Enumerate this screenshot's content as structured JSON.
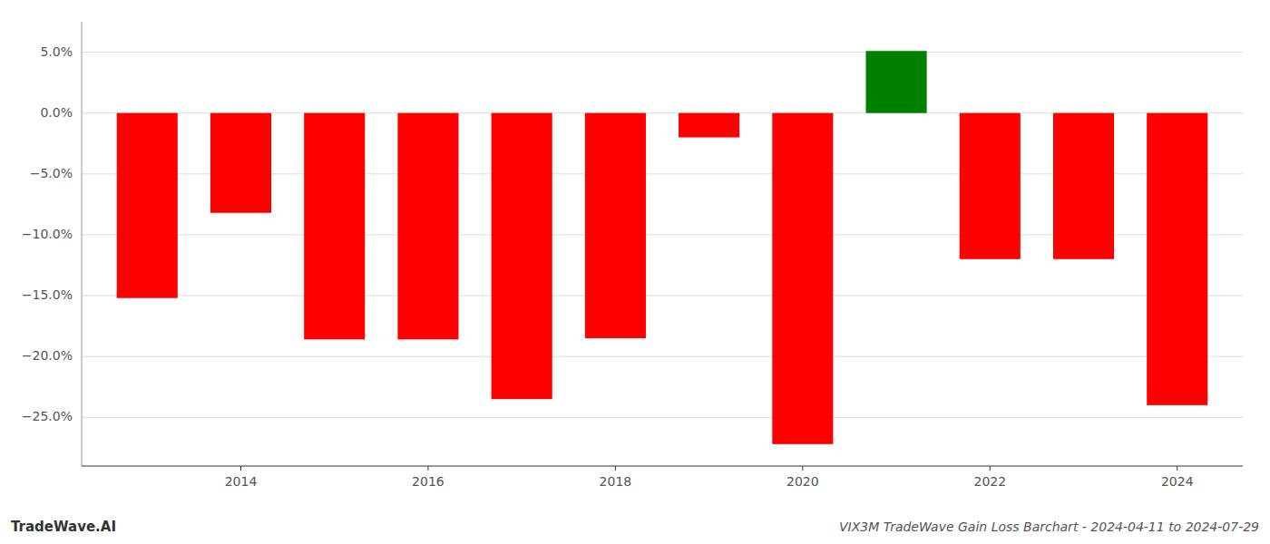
{
  "chart_data": {
    "type": "bar",
    "title": "VIX3M TradeWave Gain Loss Barchart - 2024-04-11 to 2024-07-29",
    "annotations": [
      "TradeWave.AI"
    ],
    "categories": [
      null,
      "2014",
      null,
      "2016",
      null,
      "2018",
      null,
      "2020",
      null,
      "2022",
      null,
      "2024"
    ],
    "values": [
      -0.152,
      -0.082,
      -0.186,
      -0.186,
      -0.235,
      -0.185,
      -0.02,
      -0.272,
      0.051,
      -0.12,
      -0.12,
      -0.24
    ],
    "colors": [
      "#ff0000",
      "#ff0000",
      "#ff0000",
      "#ff0000",
      "#ff0000",
      "#ff0000",
      "#ff0000",
      "#ff0000",
      "#008000",
      "#ff0000",
      "#ff0000",
      "#ff0000"
    ],
    "ylim": [
      -0.29,
      0.075
    ],
    "yticks": [
      {
        "value": -0.25,
        "label": "−25.0%"
      },
      {
        "value": -0.2,
        "label": "−20.0%"
      },
      {
        "value": -0.15,
        "label": "−15.0%"
      },
      {
        "value": -0.1,
        "label": "−10.0%"
      },
      {
        "value": -0.05,
        "label": "−5.0%"
      },
      {
        "value": 0.0,
        "label": "0.0%"
      },
      {
        "value": 0.05,
        "label": "5.0%"
      }
    ],
    "grid": true
  }
}
